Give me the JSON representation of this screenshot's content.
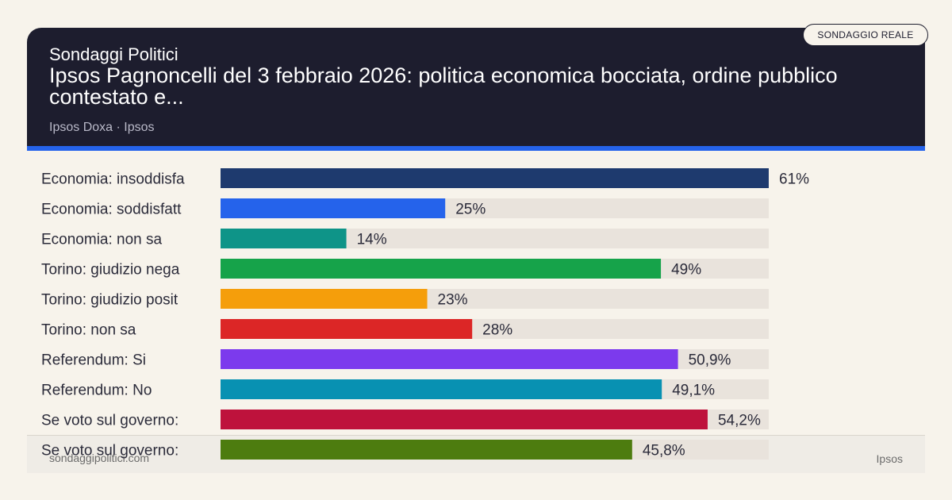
{
  "header": {
    "kicker": "Sondaggi Politici",
    "title": "Ipsos Pagnoncelli del 3 febbraio 2026: politica economica bocciata, ordine pubblico contestato e...",
    "source": "Ipsos Doxa · Ipsos"
  },
  "badge": "SONDAGGIO REALE",
  "footer": {
    "site": "sondaggipolitici.com",
    "brand": "Ipsos"
  },
  "colors": {
    "header_bg": "#1d1d2e",
    "accent": "#2563eb",
    "track": "#e9e3dc"
  },
  "chart_data": {
    "type": "bar",
    "orientation": "horizontal",
    "categories": [
      "Economia: insoddisfa",
      "Economia: soddisfatt",
      "Economia: non sa",
      "Torino: giudizio nega",
      "Torino: giudizio posit",
      "Torino: non sa",
      "Referendum: Si",
      "Referendum: No",
      "Se voto sul governo:",
      "Se voto sul governo:"
    ],
    "values": [
      61,
      25,
      14,
      49,
      23,
      28,
      50.9,
      49.1,
      54.2,
      45.8
    ],
    "value_labels": [
      "61%",
      "25%",
      "14%",
      "49%",
      "23%",
      "28%",
      "50,9%",
      "49,1%",
      "54,2%",
      "45,8%"
    ],
    "colors": [
      "#1e3a6e",
      "#2563eb",
      "#0e9488",
      "#16a34a",
      "#f59e0b",
      "#dc2626",
      "#7c3aed",
      "#0891b2",
      "#be123c",
      "#4d7c0f"
    ],
    "xlim": [
      0,
      61
    ],
    "grid": false,
    "legend": "none"
  }
}
